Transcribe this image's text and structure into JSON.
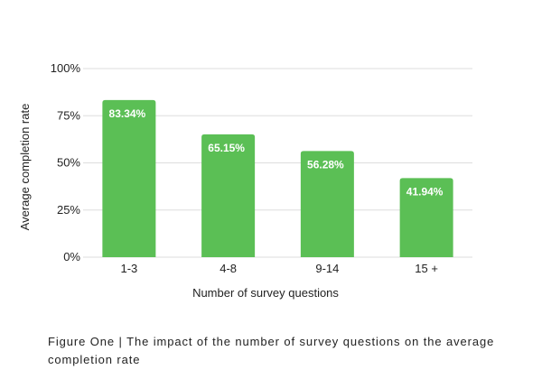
{
  "chart_data": {
    "type": "bar",
    "categories": [
      "1-3",
      "4-8",
      "9-14",
      "15 +"
    ],
    "values": [
      83.34,
      65.15,
      56.28,
      41.94
    ],
    "data_labels": [
      "83.34%",
      "65.15%",
      "56.28%",
      "41.94%"
    ],
    "title": "",
    "xlabel": "Number of survey questions",
    "ylabel": "Average completion rate",
    "ylim": [
      0,
      100
    ],
    "yticks": [
      0,
      25,
      50,
      75,
      100
    ],
    "ytick_labels": [
      "0%",
      "25%",
      "50%",
      "75%",
      "100%"
    ],
    "grid": true,
    "legend": "none",
    "bar_color": "#5bbf55",
    "grid_color": "#dddddd"
  },
  "caption": "Figure One | The impact of the number of survey questions on the average completion rate"
}
